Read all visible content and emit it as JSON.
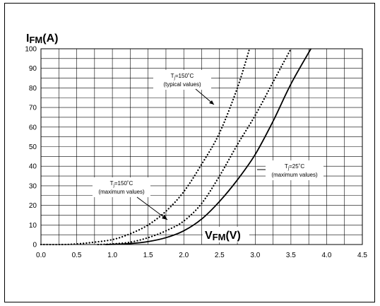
{
  "chart_data": {
    "type": "line",
    "y_title": {
      "main": "I",
      "sub": "FM",
      "unit": "(A)"
    },
    "x_title": {
      "main": "V",
      "sub": "FM",
      "unit": "(V)"
    },
    "xlim": [
      0,
      4.5
    ],
    "ylim": [
      0,
      100
    ],
    "x_ticks": [
      "0.0",
      "0.5",
      "1.0",
      "1.5",
      "2.0",
      "2.5",
      "3.0",
      "3.5",
      "4.0",
      "4.5"
    ],
    "y_ticks": [
      "0",
      "10",
      "20",
      "30",
      "40",
      "50",
      "60",
      "70",
      "80",
      "90",
      "100"
    ],
    "grid": true,
    "series": [
      {
        "key": "tj150-typical",
        "style": "dotted",
        "points": [
          [
            0.0,
            0
          ],
          [
            0.3,
            0
          ],
          [
            0.5,
            0.3
          ],
          [
            0.7,
            1
          ],
          [
            1.0,
            2.5
          ],
          [
            1.25,
            5.5
          ],
          [
            1.5,
            10
          ],
          [
            1.75,
            17
          ],
          [
            2.0,
            27
          ],
          [
            2.25,
            41
          ],
          [
            2.5,
            57
          ],
          [
            2.75,
            80
          ],
          [
            2.92,
            100
          ]
        ]
      },
      {
        "key": "tj150-maximum",
        "style": "dotted",
        "points": [
          [
            0.8,
            0
          ],
          [
            1.0,
            0.3
          ],
          [
            1.25,
            1.2
          ],
          [
            1.5,
            3.5
          ],
          [
            1.75,
            7
          ],
          [
            2.0,
            12
          ],
          [
            2.25,
            21
          ],
          [
            2.5,
            35
          ],
          [
            2.75,
            51
          ],
          [
            3.0,
            66
          ],
          [
            3.25,
            83
          ],
          [
            3.5,
            100
          ]
        ]
      },
      {
        "key": "tj25-maximum",
        "style": "solid",
        "points": [
          [
            0.9,
            0
          ],
          [
            1.0,
            0.1
          ],
          [
            1.25,
            0.5
          ],
          [
            1.5,
            1.5
          ],
          [
            1.75,
            3.5
          ],
          [
            2.0,
            7
          ],
          [
            2.25,
            13
          ],
          [
            2.5,
            22
          ],
          [
            2.75,
            33
          ],
          [
            3.0,
            46
          ],
          [
            3.25,
            63
          ],
          [
            3.5,
            82
          ],
          [
            3.78,
            100
          ]
        ]
      }
    ],
    "annotations": [
      {
        "key": "tj150-typical",
        "symbol": "T",
        "sub": "j",
        "cond": "=150˚C",
        "note": "(typical values)"
      },
      {
        "key": "tj150-maximum",
        "symbol": "T",
        "sub": "j",
        "cond": "=150˚C",
        "note": "(maximum values)"
      },
      {
        "key": "tj25-maximum",
        "symbol": "T",
        "sub": "j",
        "cond": "=25˚C",
        "note": "(maximum values)"
      }
    ]
  }
}
